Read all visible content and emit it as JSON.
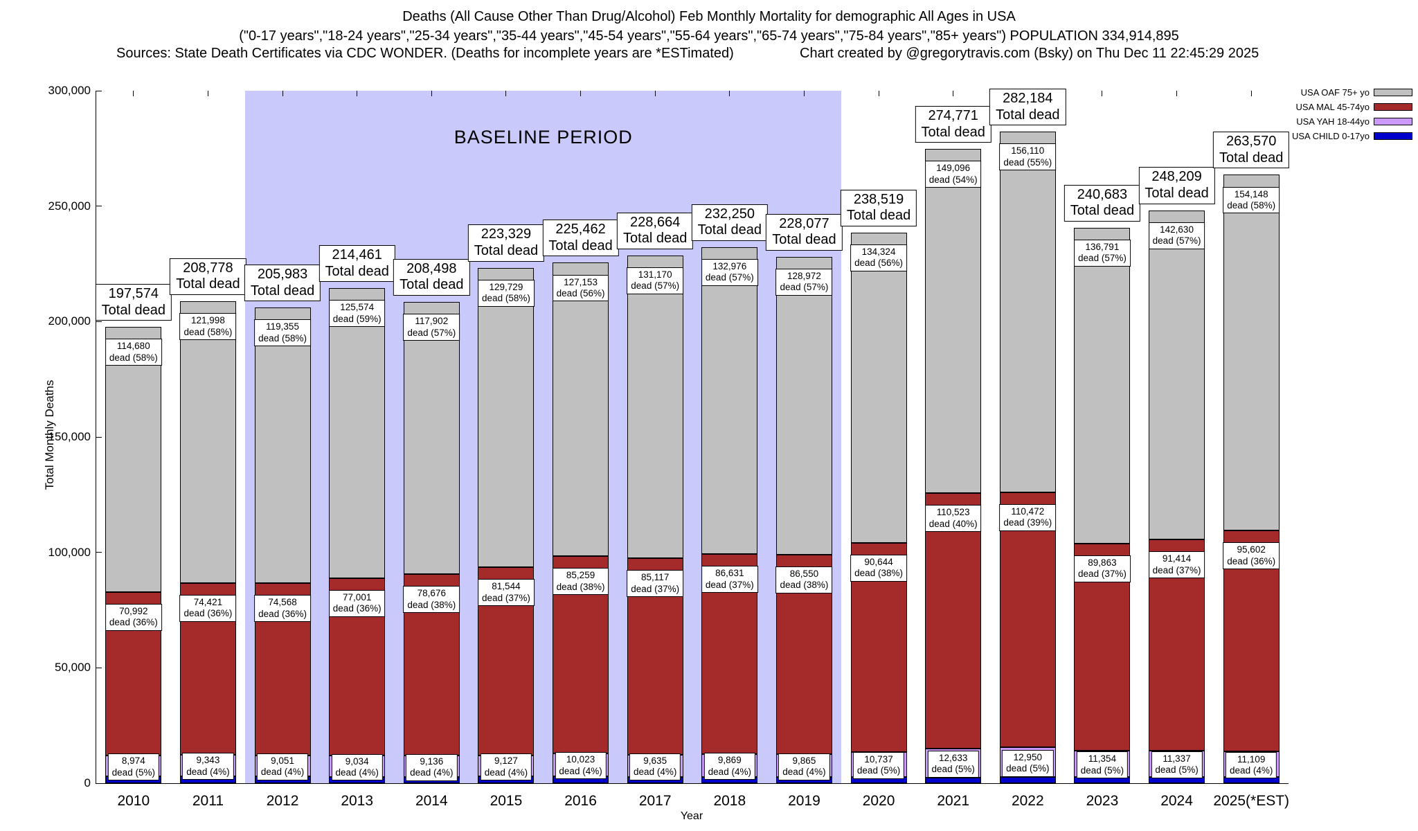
{
  "header": {
    "title_line1": "Deaths (All Cause Other Than Drug/Alcohol) Feb Monthly Mortality for demographic All Ages in USA",
    "title_line2": "(\"0-17 years\",\"18-24 years\",\"25-34 years\",\"35-44 years\",\"45-54 years\",\"55-64 years\",\"65-74 years\",\"75-84 years\",\"85+ years\") POPULATION 334,914,895",
    "sources": "Sources: State Death Certificates via CDC WONDER. (Deaths for incomplete years are *ESTimated)",
    "credit": "Chart created by @gregorytravis.com (Bsky) on Thu Dec 11 22:45:29 2025"
  },
  "chart_data": {
    "type": "bar",
    "stacked": true,
    "title": "Deaths (All Cause Other Than Drug/Alcohol) Feb Monthly Mortality for demographic All Ages in USA",
    "xlabel": "Year",
    "ylabel": "Total Monthly Deaths",
    "ylim": [
      0,
      300000
    ],
    "grid": false,
    "legend_position": "top-right",
    "ytick_values": [
      0,
      50000,
      100000,
      150000,
      200000,
      250000,
      300000
    ],
    "ytick_labels": [
      "0",
      "50,000",
      "100,000",
      "150,000",
      "200,000",
      "250,000",
      "300,000"
    ],
    "total_dead_text": "Total dead",
    "dead_word": "dead",
    "baseline": {
      "label": "BASELINE PERIOD",
      "from_year": "2012",
      "to_year": "2019"
    },
    "colors": {
      "oaf": "#c0c0c0",
      "mal": "#a52a2a",
      "yah": "#cc99ff",
      "child": "#0000cc",
      "baseline_region": "#c9c9fb"
    },
    "legend": [
      {
        "key": "oaf",
        "label": "USA OAF 75+ yo",
        "color": "#c0c0c0"
      },
      {
        "key": "mal",
        "label": "USA MAL 45-74yo",
        "color": "#a52a2a"
      },
      {
        "key": "yah",
        "label": "USA YAH 18-44yo",
        "color": "#cc99ff"
      },
      {
        "key": "child",
        "label": "USA CHILD 0-17yo",
        "color": "#0000cc"
      }
    ],
    "categories": [
      "2010",
      "2011",
      "2012",
      "2013",
      "2014",
      "2015",
      "2016",
      "2017",
      "2018",
      "2019",
      "2020",
      "2021",
      "2022",
      "2023",
      "2024",
      "2025(*EST)"
    ],
    "bars": [
      {
        "year": "2010",
        "xlabel": "2010",
        "total": 197574,
        "total_label": "197,574",
        "oaf": {
          "value": 114680,
          "label": "114,680",
          "pct": "58%"
        },
        "mal": {
          "value": 70992,
          "label": "70,992",
          "pct": "36%"
        },
        "yah": {
          "value": 8974,
          "label": "8,974",
          "pct": "5%"
        },
        "child_value": 2928
      },
      {
        "year": "2011",
        "xlabel": "2011",
        "total": 208778,
        "total_label": "208,778",
        "oaf": {
          "value": 121998,
          "label": "121,998",
          "pct": "58%"
        },
        "mal": {
          "value": 74421,
          "label": "74,421",
          "pct": "36%"
        },
        "yah": {
          "value": 9343,
          "label": "9,343",
          "pct": "4%"
        },
        "child_value": 3016
      },
      {
        "year": "2012",
        "xlabel": "2012",
        "total": 205983,
        "total_label": "205,983",
        "oaf": {
          "value": 119355,
          "label": "119,355",
          "pct": "58%"
        },
        "mal": {
          "value": 74568,
          "label": "74,568",
          "pct": "36%"
        },
        "yah": {
          "value": 9051,
          "label": "9,051",
          "pct": "4%"
        },
        "child_value": 3009
      },
      {
        "year": "2013",
        "xlabel": "2013",
        "total": 214461,
        "total_label": "214,461",
        "oaf": {
          "value": 125574,
          "label": "125,574",
          "pct": "59%"
        },
        "mal": {
          "value": 77001,
          "label": "77,001",
          "pct": "36%"
        },
        "yah": {
          "value": 9034,
          "label": "9,034",
          "pct": "4%"
        },
        "child_value": 2852
      },
      {
        "year": "2014",
        "xlabel": "2014",
        "total": 208498,
        "total_label": "208,498",
        "oaf": {
          "value": 117902,
          "label": "117,902",
          "pct": "57%"
        },
        "mal": {
          "value": 78676,
          "label": "78,676",
          "pct": "38%"
        },
        "yah": {
          "value": 9136,
          "label": "9,136",
          "pct": "4%"
        },
        "child_value": 2784
      },
      {
        "year": "2015",
        "xlabel": "2015",
        "total": 223329,
        "total_label": "223,329",
        "oaf": {
          "value": 129729,
          "label": "129,729",
          "pct": "58%"
        },
        "mal": {
          "value": 81544,
          "label": "81,544",
          "pct": "37%"
        },
        "yah": {
          "value": 9127,
          "label": "9,127",
          "pct": "4%"
        },
        "child_value": 2929
      },
      {
        "year": "2016",
        "xlabel": "2016",
        "total": 225462,
        "total_label": "225,462",
        "oaf": {
          "value": 127153,
          "label": "127,153",
          "pct": "56%"
        },
        "mal": {
          "value": 85259,
          "label": "85,259",
          "pct": "38%"
        },
        "yah": {
          "value": 10023,
          "label": "10,023",
          "pct": "4%"
        },
        "child_value": 3027
      },
      {
        "year": "2017",
        "xlabel": "2017",
        "total": 228664,
        "total_label": "228,664",
        "oaf": {
          "value": 131170,
          "label": "131,170",
          "pct": "57%"
        },
        "mal": {
          "value": 85117,
          "label": "85,117",
          "pct": "37%"
        },
        "yah": {
          "value": 9635,
          "label": "9,635",
          "pct": "4%"
        },
        "child_value": 2742
      },
      {
        "year": "2018",
        "xlabel": "2018",
        "total": 232250,
        "total_label": "232,250",
        "oaf": {
          "value": 132976,
          "label": "132,976",
          "pct": "57%"
        },
        "mal": {
          "value": 86631,
          "label": "86,631",
          "pct": "37%"
        },
        "yah": {
          "value": 9869,
          "label": "9,869",
          "pct": "4%"
        },
        "child_value": 2774
      },
      {
        "year": "2019",
        "xlabel": "2019",
        "total": 228077,
        "total_label": "228,077",
        "oaf": {
          "value": 128972,
          "label": "128,972",
          "pct": "57%"
        },
        "mal": {
          "value": 86550,
          "label": "86,550",
          "pct": "38%"
        },
        "yah": {
          "value": 9865,
          "label": "9,865",
          "pct": "4%"
        },
        "child_value": 2690
      },
      {
        "year": "2020",
        "xlabel": "2020",
        "total": 238519,
        "total_label": "238,519",
        "oaf": {
          "value": 134324,
          "label": "134,324",
          "pct": "56%"
        },
        "mal": {
          "value": 90644,
          "label": "90,644",
          "pct": "38%"
        },
        "yah": {
          "value": 10737,
          "label": "10,737",
          "pct": "5%"
        },
        "child_value": 2814
      },
      {
        "year": "2021",
        "xlabel": "2021",
        "total": 274771,
        "total_label": "274,771",
        "oaf": {
          "value": 149096,
          "label": "149,096",
          "pct": "54%"
        },
        "mal": {
          "value": 110523,
          "label": "110,523",
          "pct": "40%"
        },
        "yah": {
          "value": 12633,
          "label": "12,633",
          "pct": "5%"
        },
        "child_value": 2519
      },
      {
        "year": "2022",
        "xlabel": "2022",
        "total": 282184,
        "total_label": "282,184",
        "oaf": {
          "value": 156110,
          "label": "156,110",
          "pct": "55%"
        },
        "mal": {
          "value": 110472,
          "label": "110,472",
          "pct": "39%"
        },
        "yah": {
          "value": 12950,
          "label": "12,950",
          "pct": "5%"
        },
        "child_value": 2652
      },
      {
        "year": "2023",
        "xlabel": "2023",
        "total": 240683,
        "total_label": "240,683",
        "oaf": {
          "value": 136791,
          "label": "136,791",
          "pct": "57%"
        },
        "mal": {
          "value": 89863,
          "label": "89,863",
          "pct": "37%"
        },
        "yah": {
          "value": 11354,
          "label": "11,354",
          "pct": "5%"
        },
        "child_value": 2675
      },
      {
        "year": "2024",
        "xlabel": "2024",
        "total": 248209,
        "total_label": "248,209",
        "oaf": {
          "value": 142630,
          "label": "142,630",
          "pct": "57%"
        },
        "mal": {
          "value": 91414,
          "label": "91,414",
          "pct": "37%"
        },
        "yah": {
          "value": 11337,
          "label": "11,337",
          "pct": "5%"
        },
        "child_value": 2828
      },
      {
        "year": "2025",
        "xlabel": "2025(*EST)",
        "total": 263570,
        "total_label": "263,570",
        "oaf": {
          "value": 154148,
          "label": "154,148",
          "pct": "58%"
        },
        "mal": {
          "value": 95602,
          "label": "95,602",
          "pct": "36%"
        },
        "yah": {
          "value": 11109,
          "label": "11,109",
          "pct": "4%"
        },
        "child_value": 2711
      }
    ]
  }
}
